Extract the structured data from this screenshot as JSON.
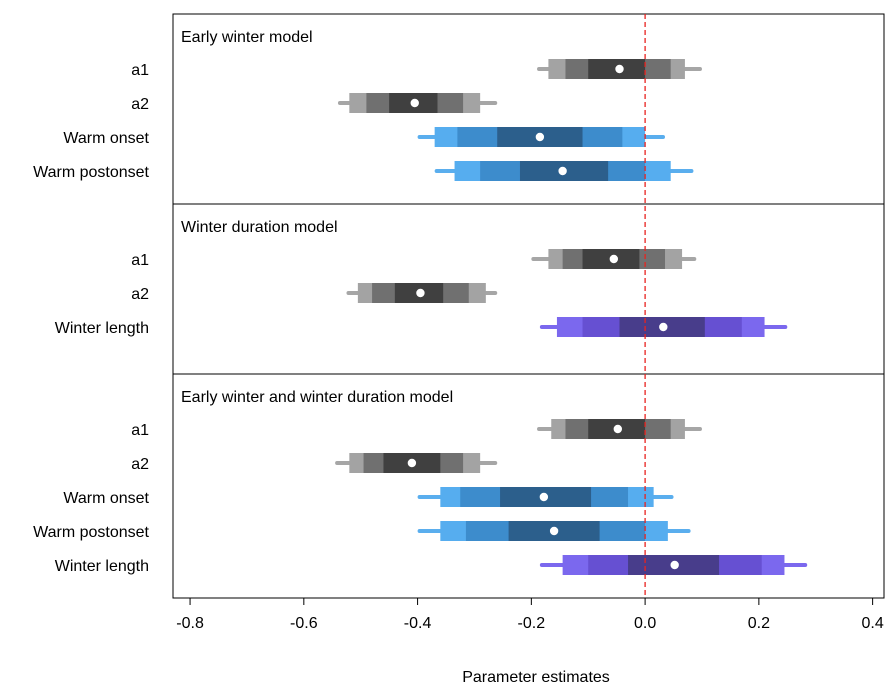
{
  "chart_data": {
    "type": "interval",
    "xlabel": "Parameter estimates",
    "xlim": [
      -0.83,
      0.42
    ],
    "xticks": [
      -0.8,
      -0.6,
      -0.4,
      -0.2,
      0.0,
      0.2,
      0.4
    ],
    "xtick_labels": [
      "-0.8",
      "-0.6",
      "-0.4",
      "-0.2",
      "0.0",
      "0.2",
      "0.4"
    ],
    "reference_line": {
      "x": 0.0,
      "style": "dashed",
      "color": "#e8231f"
    },
    "interval_levels": [
      "outer",
      "wide",
      "mid",
      "inner",
      "median"
    ],
    "palettes": {
      "gray": {
        "whisker": "#a6a6a6",
        "outer": "#a3a3a3",
        "mid": "#707070",
        "inner": "#404040"
      },
      "blue": {
        "whisker": "#5aaeee",
        "outer": "#56adef",
        "mid": "#3d8ccc",
        "inner": "#2c5f8c"
      },
      "purple": {
        "whisker": "#7b68ee",
        "outer": "#7b68ee",
        "mid": "#6650d2",
        "inner": "#483d8b"
      }
    },
    "panels": [
      {
        "title": "Early winter model",
        "rows": [
          {
            "label": "a1",
            "palette": "gray",
            "outer": [
              -0.19,
              0.1
            ],
            "wide": [
              -0.17,
              0.07
            ],
            "mid": [
              -0.14,
              0.045
            ],
            "inner": [
              -0.1,
              0.0
            ],
            "median": -0.045
          },
          {
            "label": "a2",
            "palette": "gray",
            "outer": [
              -0.54,
              -0.26
            ],
            "wide": [
              -0.52,
              -0.29
            ],
            "mid": [
              -0.49,
              -0.32
            ],
            "inner": [
              -0.45,
              -0.365
            ],
            "median": -0.405
          },
          {
            "label": "Warm onset",
            "palette": "blue",
            "outer": [
              -0.4,
              0.035
            ],
            "wide": [
              -0.37,
              0.0
            ],
            "mid": [
              -0.33,
              -0.04
            ],
            "inner": [
              -0.26,
              -0.11
            ],
            "median": -0.185
          },
          {
            "label": "Warm postonset",
            "palette": "blue",
            "outer": [
              -0.37,
              0.085
            ],
            "wide": [
              -0.335,
              0.045
            ],
            "mid": [
              -0.29,
              0.0
            ],
            "inner": [
              -0.22,
              -0.065
            ],
            "median": -0.145
          }
        ]
      },
      {
        "title": "Winter duration model",
        "rows": [
          {
            "label": "a1",
            "palette": "gray",
            "outer": [
              -0.2,
              0.09
            ],
            "wide": [
              -0.17,
              0.065
            ],
            "mid": [
              -0.145,
              0.035
            ],
            "inner": [
              -0.11,
              -0.01
            ],
            "median": -0.055
          },
          {
            "label": "a2",
            "palette": "gray",
            "outer": [
              -0.525,
              -0.26
            ],
            "wide": [
              -0.505,
              -0.28
            ],
            "mid": [
              -0.48,
              -0.31
            ],
            "inner": [
              -0.44,
              -0.355
            ],
            "median": -0.395
          },
          {
            "label": "Winter length",
            "palette": "purple",
            "outer": [
              -0.185,
              0.25
            ],
            "wide": [
              -0.155,
              0.21
            ],
            "mid": [
              -0.11,
              0.17
            ],
            "inner": [
              -0.045,
              0.105
            ],
            "median": 0.032
          }
        ]
      },
      {
        "title": "Early winter and winter duration model",
        "rows": [
          {
            "label": "a1",
            "palette": "gray",
            "outer": [
              -0.19,
              0.1
            ],
            "wide": [
              -0.165,
              0.07
            ],
            "mid": [
              -0.14,
              0.045
            ],
            "inner": [
              -0.1,
              0.0
            ],
            "median": -0.048
          },
          {
            "label": "a2",
            "palette": "gray",
            "outer": [
              -0.545,
              -0.26
            ],
            "wide": [
              -0.52,
              -0.29
            ],
            "mid": [
              -0.495,
              -0.32
            ],
            "inner": [
              -0.46,
              -0.36
            ],
            "median": -0.41
          },
          {
            "label": "Warm onset",
            "palette": "blue",
            "outer": [
              -0.4,
              0.05
            ],
            "wide": [
              -0.36,
              0.015
            ],
            "mid": [
              -0.325,
              -0.03
            ],
            "inner": [
              -0.255,
              -0.095
            ],
            "median": -0.178
          },
          {
            "label": "Warm postonset",
            "palette": "blue",
            "outer": [
              -0.4,
              0.08
            ],
            "wide": [
              -0.36,
              0.04
            ],
            "mid": [
              -0.315,
              0.0
            ],
            "inner": [
              -0.24,
              -0.08
            ],
            "median": -0.16
          },
          {
            "label": "Winter length",
            "palette": "purple",
            "outer": [
              -0.185,
              0.285
            ],
            "wide": [
              -0.145,
              0.245
            ],
            "mid": [
              -0.1,
              0.205
            ],
            "inner": [
              -0.03,
              0.13
            ],
            "median": 0.052
          }
        ]
      }
    ]
  }
}
